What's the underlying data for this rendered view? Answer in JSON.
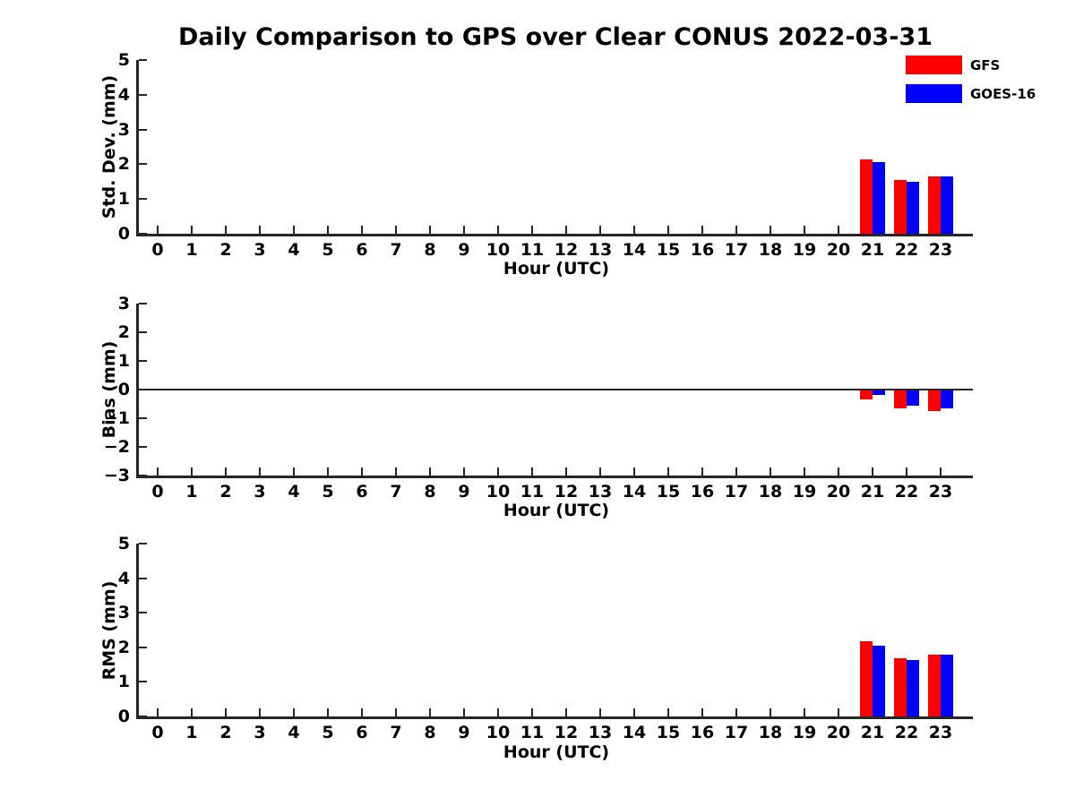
{
  "figure": {
    "title": "Daily Comparison to GPS over Clear CONUS 2022-03-31",
    "background": "#ffffff"
  },
  "legend": {
    "position": "top-right",
    "entries": [
      {
        "label": "GFS",
        "color": "#ff0000"
      },
      {
        "label": "GOES-16",
        "color": "#0000ff"
      }
    ]
  },
  "chart_data": [
    {
      "type": "bar",
      "ylabel": "Std. Dev. (mm)",
      "xlabel": "Hour (UTC)",
      "categories": [
        0,
        1,
        2,
        3,
        4,
        5,
        6,
        7,
        8,
        9,
        10,
        11,
        12,
        13,
        14,
        15,
        16,
        17,
        18,
        19,
        20,
        21,
        22,
        23
      ],
      "ylim": [
        0,
        5
      ],
      "yticks": [
        0,
        1,
        2,
        3,
        4,
        5
      ],
      "grid": false,
      "zero_line": false,
      "series": [
        {
          "name": "GFS",
          "color": "#ff0000",
          "values": [
            null,
            null,
            null,
            null,
            null,
            null,
            null,
            null,
            null,
            null,
            null,
            null,
            null,
            null,
            null,
            null,
            null,
            null,
            null,
            null,
            null,
            2.15,
            1.55,
            1.65
          ]
        },
        {
          "name": "GOES-16",
          "color": "#0000ff",
          "values": [
            null,
            null,
            null,
            null,
            null,
            null,
            null,
            null,
            null,
            null,
            null,
            null,
            null,
            null,
            null,
            null,
            null,
            null,
            null,
            null,
            null,
            2.05,
            1.5,
            1.65
          ]
        }
      ]
    },
    {
      "type": "bar",
      "ylabel": "Bias (mm)",
      "xlabel": "Hour (UTC)",
      "categories": [
        0,
        1,
        2,
        3,
        4,
        5,
        6,
        7,
        8,
        9,
        10,
        11,
        12,
        13,
        14,
        15,
        16,
        17,
        18,
        19,
        20,
        21,
        22,
        23
      ],
      "ylim": [
        -3,
        3
      ],
      "yticks": [
        -3,
        -2,
        -1,
        0,
        1,
        2,
        3
      ],
      "grid": false,
      "zero_line": true,
      "series": [
        {
          "name": "GFS",
          "color": "#ff0000",
          "values": [
            null,
            null,
            null,
            null,
            null,
            null,
            null,
            null,
            null,
            null,
            null,
            null,
            null,
            null,
            null,
            null,
            null,
            null,
            null,
            null,
            null,
            -0.35,
            -0.65,
            -0.75
          ]
        },
        {
          "name": "GOES-16",
          "color": "#0000ff",
          "values": [
            null,
            null,
            null,
            null,
            null,
            null,
            null,
            null,
            null,
            null,
            null,
            null,
            null,
            null,
            null,
            null,
            null,
            null,
            null,
            null,
            null,
            -0.2,
            -0.55,
            -0.65
          ]
        }
      ]
    },
    {
      "type": "bar",
      "ylabel": "RMS (mm)",
      "xlabel": "Hour (UTC)",
      "categories": [
        0,
        1,
        2,
        3,
        4,
        5,
        6,
        7,
        8,
        9,
        10,
        11,
        12,
        13,
        14,
        15,
        16,
        17,
        18,
        19,
        20,
        21,
        22,
        23
      ],
      "ylim": [
        0,
        5
      ],
      "yticks": [
        0,
        1,
        2,
        3,
        4,
        5
      ],
      "grid": false,
      "zero_line": false,
      "series": [
        {
          "name": "GFS",
          "color": "#ff0000",
          "values": [
            null,
            null,
            null,
            null,
            null,
            null,
            null,
            null,
            null,
            null,
            null,
            null,
            null,
            null,
            null,
            null,
            null,
            null,
            null,
            null,
            null,
            2.17,
            1.68,
            1.8
          ]
        },
        {
          "name": "GOES-16",
          "color": "#0000ff",
          "values": [
            null,
            null,
            null,
            null,
            null,
            null,
            null,
            null,
            null,
            null,
            null,
            null,
            null,
            null,
            null,
            null,
            null,
            null,
            null,
            null,
            null,
            2.05,
            1.62,
            1.78
          ]
        }
      ]
    }
  ]
}
